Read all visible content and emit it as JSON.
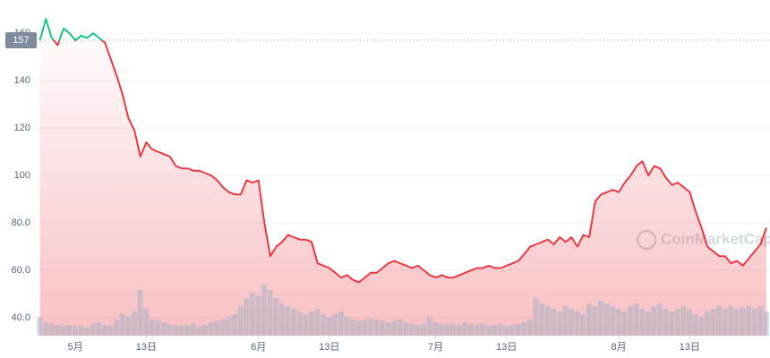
{
  "chart_data": {
    "type": "line",
    "watermark": "CoinMarketCap",
    "x": [
      -6,
      -5,
      -4,
      -3,
      -2,
      -1,
      0,
      1,
      2,
      3,
      4,
      5,
      6,
      7,
      8,
      9,
      10,
      11,
      12,
      13,
      14,
      15,
      16,
      17,
      18,
      19,
      20,
      21,
      22,
      23,
      24,
      25,
      26,
      27,
      28,
      29,
      30,
      31,
      32,
      33,
      34,
      35,
      36,
      37,
      38,
      39,
      40,
      41,
      42,
      43,
      44,
      45,
      46,
      47,
      48,
      49,
      50,
      51,
      52,
      53,
      54,
      55,
      56,
      57,
      58,
      59,
      60,
      61,
      62,
      63,
      64,
      65,
      66,
      67,
      68,
      69,
      70,
      71,
      72,
      73,
      74,
      75,
      76,
      77,
      78,
      79,
      80,
      81,
      82,
      83,
      84,
      85,
      86,
      87,
      88,
      89,
      90,
      91,
      92,
      93,
      94,
      95,
      96,
      97,
      98,
      99,
      100,
      101,
      102,
      103,
      104,
      105,
      106,
      107,
      108,
      109,
      110,
      111,
      112,
      113,
      114,
      115,
      116,
      117
    ],
    "series": [
      {
        "name": "Price",
        "values": [
          157,
          166,
          158,
          155,
          162,
          160,
          157,
          159,
          158,
          160,
          158,
          156,
          149,
          142,
          134,
          124,
          119,
          108,
          114,
          111,
          110,
          109,
          108,
          104,
          103,
          103,
          102,
          102,
          101,
          100,
          98,
          95,
          93,
          92,
          92,
          98,
          97,
          98,
          80,
          66,
          70,
          72,
          75,
          74,
          73,
          73,
          72,
          63,
          62,
          61,
          59,
          57,
          58,
          56,
          55,
          57,
          59,
          59,
          61,
          63,
          64,
          63,
          62,
          61,
          62,
          60,
          58,
          57,
          58,
          57,
          57,
          58,
          59,
          60,
          61,
          61,
          62,
          61,
          61,
          62,
          63,
          64,
          67,
          70,
          71,
          72,
          73,
          71,
          74,
          72,
          74,
          70,
          75,
          74,
          89,
          92,
          93,
          94,
          93,
          97,
          100,
          104,
          106,
          100,
          104,
          103,
          99,
          96,
          97,
          95,
          93,
          85,
          78,
          70,
          68,
          66,
          66,
          63,
          64,
          62,
          65,
          68,
          71,
          78
        ]
      },
      {
        "name": "Volume",
        "axis": "y2",
        "color": "#a9b3c6",
        "values": [
          35,
          25,
          22,
          20,
          18,
          20,
          18,
          18,
          15,
          22,
          25,
          20,
          18,
          30,
          40,
          35,
          45,
          85,
          50,
          30,
          28,
          25,
          22,
          20,
          18,
          20,
          22,
          18,
          20,
          25,
          28,
          30,
          35,
          40,
          55,
          70,
          80,
          75,
          95,
          85,
          70,
          60,
          55,
          50,
          45,
          40,
          45,
          50,
          40,
          35,
          40,
          45,
          35,
          30,
          28,
          30,
          32,
          30,
          28,
          25,
          28,
          30,
          25,
          22,
          20,
          22,
          35,
          25,
          22,
          20,
          22,
          20,
          25,
          22,
          20,
          22,
          18,
          20,
          22,
          18,
          20,
          22,
          25,
          30,
          70,
          60,
          55,
          50,
          45,
          55,
          50,
          45,
          40,
          60,
          55,
          65,
          60,
          55,
          50,
          45,
          55,
          60,
          50,
          45,
          55,
          60,
          50,
          45,
          50,
          55,
          48,
          40,
          35,
          45,
          50,
          55,
          50,
          55,
          50,
          52,
          55,
          50,
          55,
          45
        ]
      }
    ],
    "baseline": 157,
    "up_color": "#16c784",
    "down_color": "#ea3943",
    "xlim": [
      -6.4,
      117.6
    ],
    "xticks": [
      {
        "value": 0,
        "label": "5月"
      },
      {
        "value": 12,
        "label": "13日"
      },
      {
        "value": 31,
        "label": "6月"
      },
      {
        "value": 43,
        "label": "13日"
      },
      {
        "value": 61,
        "label": "7月"
      },
      {
        "value": 73,
        "label": "13日"
      },
      {
        "value": 92,
        "label": "8月"
      },
      {
        "value": 104,
        "label": "13日"
      }
    ],
    "ylim": [
      32.5,
      174
    ],
    "yticks": [
      {
        "value": 40,
        "label": "40.0"
      },
      {
        "value": 60,
        "label": "60.0"
      },
      {
        "value": 80,
        "label": "80.0"
      },
      100,
      120,
      140,
      160
    ],
    "y2lim": [
      0,
      100
    ],
    "grid": true
  }
}
